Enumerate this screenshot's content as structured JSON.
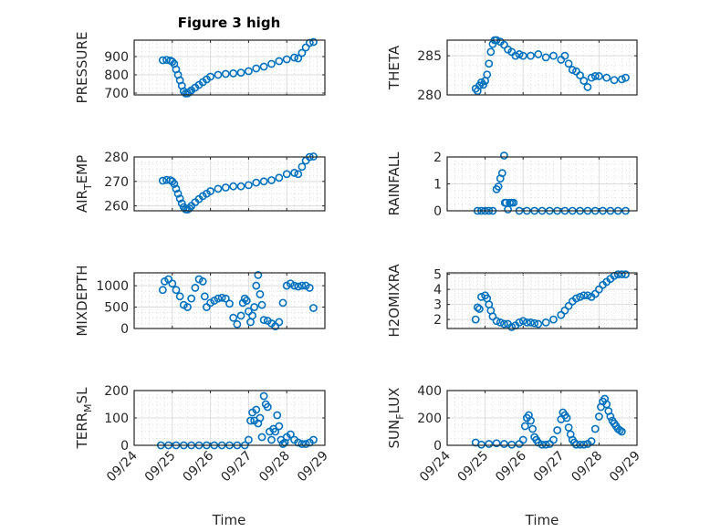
{
  "chart_data": [
    {
      "type": "scatter",
      "title": "Figure 3 high",
      "xlabel": "",
      "ylabel": "PRESSURE",
      "xlim": [
        0,
        5
      ],
      "x_tick_labels": [
        "09/24",
        "09/25",
        "09/26",
        "09/27",
        "09/28",
        "09/29"
      ],
      "ylim": [
        690,
        990
      ],
      "yticks": [
        700,
        800,
        900
      ],
      "y_tick_labels": [
        "700",
        "800",
        "900"
      ],
      "grid": true,
      "series": [
        {
          "name": "PRESSURE",
          "x": [
            0.75,
            0.85,
            0.95,
            1.0,
            1.05,
            1.1,
            1.15,
            1.2,
            1.25,
            1.3,
            1.35,
            1.4,
            1.45,
            1.5,
            1.6,
            1.7,
            1.8,
            1.9,
            2.0,
            2.2,
            2.4,
            2.6,
            2.8,
            3.0,
            3.2,
            3.4,
            3.6,
            3.8,
            4.0,
            4.2,
            4.3,
            4.4,
            4.5,
            4.6,
            4.7
          ],
          "y": [
            880,
            882,
            878,
            872,
            860,
            830,
            800,
            770,
            740,
            710,
            698,
            698,
            705,
            715,
            730,
            745,
            760,
            775,
            790,
            800,
            805,
            808,
            812,
            820,
            835,
            845,
            860,
            875,
            885,
            895,
            890,
            920,
            950,
            975,
            980
          ]
        }
      ]
    },
    {
      "type": "scatter",
      "title": "",
      "xlabel": "",
      "ylabel": "THETA",
      "xlim": [
        0,
        5
      ],
      "x_tick_labels": [
        "09/24",
        "09/25",
        "09/26",
        "09/27",
        "09/28",
        "09/29"
      ],
      "ylim": [
        280,
        287
      ],
      "yticks": [
        280,
        285
      ],
      "y_tick_labels": [
        "280",
        "285"
      ],
      "grid": true,
      "series": [
        {
          "name": "THETA",
          "x": [
            0.75,
            0.8,
            0.85,
            0.9,
            0.95,
            1.0,
            1.05,
            1.1,
            1.15,
            1.2,
            1.25,
            1.3,
            1.4,
            1.5,
            1.6,
            1.7,
            1.8,
            1.9,
            2.0,
            2.2,
            2.4,
            2.6,
            2.8,
            3.0,
            3.1,
            3.2,
            3.3,
            3.4,
            3.5,
            3.6,
            3.7,
            3.8,
            3.9,
            4.0,
            4.2,
            4.4,
            4.6,
            4.7
          ],
          "y": [
            280.8,
            280.5,
            281.2,
            281.6,
            281.3,
            281.8,
            282.6,
            284.0,
            285.5,
            286.5,
            287.0,
            287.0,
            286.8,
            286.4,
            285.8,
            285.5,
            285.0,
            285.2,
            285.0,
            285.0,
            285.2,
            284.8,
            285.0,
            284.5,
            285.0,
            284.0,
            283.2,
            283.0,
            282.5,
            281.8,
            281.0,
            282.2,
            282.4,
            282.4,
            282.2,
            281.9,
            282.0,
            282.2
          ]
        }
      ]
    },
    {
      "type": "scatter",
      "title": "",
      "xlabel": "",
      "ylabel": "AIR_TEMP",
      "xlim": [
        0,
        5
      ],
      "x_tick_labels": [
        "09/24",
        "09/25",
        "09/26",
        "09/27",
        "09/28",
        "09/29"
      ],
      "ylim": [
        258,
        280
      ],
      "yticks": [
        260,
        270,
        280
      ],
      "y_tick_labels": [
        "260",
        "270",
        "280"
      ],
      "grid": true,
      "series": [
        {
          "name": "AIR_TEMP",
          "x": [
            0.75,
            0.85,
            0.95,
            1.0,
            1.05,
            1.1,
            1.15,
            1.2,
            1.25,
            1.3,
            1.35,
            1.4,
            1.45,
            1.5,
            1.6,
            1.7,
            1.8,
            1.9,
            2.0,
            2.2,
            2.4,
            2.6,
            2.8,
            3.0,
            3.2,
            3.4,
            3.6,
            3.8,
            4.0,
            4.2,
            4.3,
            4.4,
            4.5,
            4.6,
            4.7
          ],
          "y": [
            270.3,
            270.6,
            270.5,
            270.0,
            269.0,
            267.0,
            265.0,
            263.0,
            261.0,
            259.5,
            258.6,
            258.5,
            259.0,
            260.0,
            261.5,
            262.8,
            264.0,
            265.0,
            266.0,
            267.0,
            267.5,
            268.0,
            268.0,
            268.5,
            269.5,
            270.0,
            270.5,
            271.5,
            273.0,
            273.5,
            273.0,
            276.0,
            278.5,
            280.0,
            280.2
          ]
        }
      ]
    },
    {
      "type": "scatter",
      "title": "",
      "xlabel": "",
      "ylabel": "RAINFALL",
      "xlim": [
        0,
        5
      ],
      "x_tick_labels": [
        "09/24",
        "09/25",
        "09/26",
        "09/27",
        "09/28",
        "09/29"
      ],
      "ylim": [
        0,
        2
      ],
      "yticks": [
        0,
        1,
        2
      ],
      "y_tick_labels": [
        "0",
        "1",
        "2"
      ],
      "grid": true,
      "series": [
        {
          "name": "RAINFALL",
          "x": [
            0.8,
            0.9,
            1.0,
            1.1,
            1.2,
            1.3,
            1.35,
            1.4,
            1.45,
            1.5,
            1.52,
            1.55,
            1.6,
            1.65,
            1.7,
            1.75,
            1.9,
            2.1,
            2.3,
            2.5,
            2.7,
            2.9,
            3.1,
            3.3,
            3.5,
            3.7,
            3.9,
            4.1,
            4.3,
            4.5,
            4.7
          ],
          "y": [
            0,
            0,
            0,
            0,
            0,
            0.8,
            0.9,
            1.2,
            1.4,
            2.05,
            0.3,
            0.3,
            0.05,
            0.3,
            0.3,
            0.3,
            0,
            0,
            0,
            0,
            0,
            0,
            0,
            0,
            0,
            0,
            0,
            0,
            0,
            0,
            0
          ]
        }
      ]
    },
    {
      "type": "scatter",
      "title": "",
      "xlabel": "",
      "ylabel": "MIXDEPTH",
      "xlim": [
        0,
        5
      ],
      "x_tick_labels": [
        "09/24",
        "09/25",
        "09/26",
        "09/27",
        "09/28",
        "09/29"
      ],
      "ylim": [
        0,
        1300
      ],
      "yticks": [
        0,
        500,
        1000
      ],
      "y_tick_labels": [
        "0",
        "500",
        "1000"
      ],
      "grid": true,
      "series": [
        {
          "name": "MIXDEPTH",
          "x": [
            0.75,
            0.8,
            0.9,
            1.0,
            1.1,
            1.2,
            1.3,
            1.4,
            1.5,
            1.6,
            1.7,
            1.8,
            1.85,
            1.9,
            2.0,
            2.1,
            2.2,
            2.3,
            2.4,
            2.5,
            2.6,
            2.7,
            2.8,
            2.85,
            2.9,
            2.95,
            3.0,
            3.05,
            3.1,
            3.15,
            3.2,
            3.25,
            3.3,
            3.35,
            3.4,
            3.5,
            3.6,
            3.7,
            3.8,
            3.9,
            4.0,
            4.1,
            4.2,
            4.3,
            4.4,
            4.5,
            4.6,
            4.7
          ],
          "y": [
            900,
            1100,
            1150,
            1050,
            900,
            750,
            550,
            500,
            700,
            950,
            1150,
            1100,
            750,
            500,
            600,
            650,
            700,
            720,
            700,
            580,
            250,
            100,
            300,
            600,
            700,
            650,
            400,
            150,
            300,
            500,
            1000,
            1250,
            800,
            550,
            200,
            180,
            120,
            50,
            150,
            600,
            1000,
            1050,
            1000,
            980,
            1000,
            1000,
            950,
            480
          ]
        }
      ]
    },
    {
      "type": "scatter",
      "title": "",
      "xlabel": "",
      "ylabel": "H2OMIXRA",
      "xlim": [
        0,
        5
      ],
      "x_tick_labels": [
        "09/24",
        "09/25",
        "09/26",
        "09/27",
        "09/28",
        "09/29"
      ],
      "ylim": [
        1.4,
        5.1
      ],
      "yticks": [
        2,
        3,
        4,
        5
      ],
      "y_tick_labels": [
        "2",
        "3",
        "4",
        "5"
      ],
      "grid": true,
      "series": [
        {
          "name": "H2OMIXRA",
          "x": [
            0.75,
            0.8,
            0.85,
            0.9,
            1.0,
            1.05,
            1.1,
            1.15,
            1.2,
            1.3,
            1.4,
            1.5,
            1.6,
            1.7,
            1.8,
            1.9,
            2.0,
            2.1,
            2.2,
            2.3,
            2.4,
            2.6,
            2.8,
            3.0,
            3.1,
            3.2,
            3.3,
            3.4,
            3.5,
            3.6,
            3.7,
            3.8,
            3.9,
            4.0,
            4.1,
            4.2,
            4.3,
            4.4,
            4.5,
            4.6,
            4.7
          ],
          "y": [
            2.0,
            2.8,
            2.7,
            3.5,
            3.6,
            3.4,
            3.0,
            2.6,
            2.2,
            1.9,
            1.8,
            1.7,
            1.7,
            1.5,
            1.6,
            1.8,
            1.9,
            1.8,
            1.8,
            1.75,
            1.7,
            1.8,
            2.0,
            2.3,
            2.6,
            2.9,
            3.2,
            3.4,
            3.5,
            3.6,
            3.6,
            3.5,
            3.7,
            4.0,
            4.3,
            4.5,
            4.7,
            4.9,
            5.0,
            5.0,
            5.0
          ]
        }
      ]
    },
    {
      "type": "scatter",
      "title": "",
      "xlabel": "Time",
      "ylabel": "TERR_MSL",
      "xlim": [
        0,
        5
      ],
      "x_tick_labels": [
        "09/24",
        "09/25",
        "09/26",
        "09/27",
        "09/28",
        "09/29"
      ],
      "ylim": [
        0,
        200
      ],
      "yticks": [
        0,
        100,
        200
      ],
      "y_tick_labels": [
        "0",
        "100",
        "200"
      ],
      "grid": true,
      "series": [
        {
          "name": "TERR_MSL",
          "x": [
            0.7,
            0.9,
            1.1,
            1.3,
            1.5,
            1.7,
            1.9,
            2.1,
            2.3,
            2.5,
            2.7,
            2.9,
            3.0,
            3.05,
            3.1,
            3.15,
            3.2,
            3.25,
            3.3,
            3.35,
            3.4,
            3.45,
            3.5,
            3.55,
            3.6,
            3.65,
            3.7,
            3.75,
            3.8,
            3.85,
            3.9,
            3.95,
            4.0,
            4.1,
            4.2,
            4.3,
            4.4,
            4.5,
            4.6,
            4.7
          ],
          "y": [
            0,
            0,
            0,
            0,
            0,
            0,
            0,
            0,
            0,
            0,
            0,
            0,
            20,
            90,
            120,
            90,
            130,
            80,
            100,
            30,
            180,
            150,
            140,
            50,
            20,
            60,
            50,
            110,
            70,
            20,
            5,
            10,
            30,
            40,
            20,
            10,
            5,
            5,
            10,
            20
          ]
        }
      ]
    },
    {
      "type": "scatter",
      "title": "",
      "xlabel": "Time",
      "ylabel": "SUN_FLUX",
      "xlim": [
        0,
        5
      ],
      "x_tick_labels": [
        "09/24",
        "09/25",
        "09/26",
        "09/27",
        "09/28",
        "09/29"
      ],
      "ylim": [
        0,
        400
      ],
      "yticks": [
        0,
        200,
        400
      ],
      "y_tick_labels": [
        "0",
        "200",
        "400"
      ],
      "grid": true,
      "series": [
        {
          "name": "SUN_FLUX",
          "x": [
            0.75,
            0.9,
            1.1,
            1.3,
            1.5,
            1.7,
            1.9,
            2.0,
            2.05,
            2.1,
            2.15,
            2.2,
            2.25,
            2.3,
            2.35,
            2.4,
            2.5,
            2.6,
            2.7,
            2.8,
            2.9,
            3.0,
            3.05,
            3.1,
            3.15,
            3.2,
            3.25,
            3.3,
            3.35,
            3.4,
            3.5,
            3.6,
            3.7,
            3.8,
            3.9,
            4.0,
            4.05,
            4.1,
            4.15,
            4.2,
            4.25,
            4.3,
            4.35,
            4.4,
            4.45,
            4.5,
            4.55,
            4.6
          ],
          "y": [
            20,
            5,
            10,
            15,
            10,
            5,
            10,
            40,
            140,
            200,
            220,
            180,
            120,
            60,
            40,
            20,
            5,
            5,
            10,
            40,
            110,
            190,
            240,
            220,
            200,
            130,
            80,
            40,
            20,
            5,
            5,
            5,
            10,
            30,
            120,
            210,
            280,
            320,
            340,
            300,
            250,
            210,
            180,
            160,
            140,
            120,
            110,
            100
          ]
        }
      ]
    }
  ]
}
